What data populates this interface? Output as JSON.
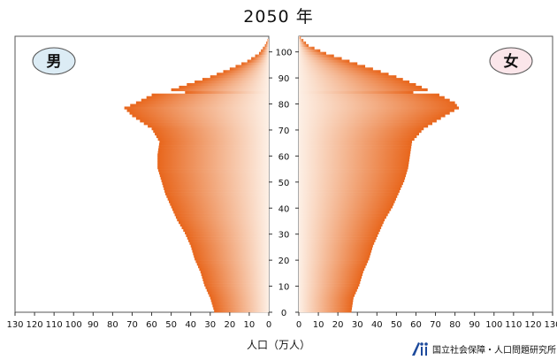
{
  "title": "2050 年",
  "xlabel": "人口（万人）",
  "legend": {
    "male": "男",
    "female": "女"
  },
  "organization": "国立社会保障・人口問題研究所",
  "colors": {
    "bar_dark": "#e8661c",
    "bar_light": "#fdf0e6",
    "male_badge": "#dcecf5",
    "female_badge": "#fbe6ea"
  },
  "chart_data": {
    "type": "bar",
    "orientation": "horizontal-population-pyramid",
    "ages_start": 0,
    "ages_end": 105,
    "ylim": [
      0,
      105
    ],
    "y_ticks": [
      0,
      10,
      20,
      30,
      40,
      50,
      60,
      70,
      80,
      90,
      100
    ],
    "x_ticks": [
      130,
      120,
      110,
      100,
      90,
      80,
      70,
      60,
      50,
      40,
      30,
      20,
      10,
      0
    ],
    "x_ticks_female": [
      0,
      10,
      20,
      30,
      40,
      50,
      60,
      70,
      80,
      90,
      100,
      110,
      120,
      130
    ],
    "xlim": [
      0,
      130
    ],
    "series": [
      {
        "name": "男",
        "key": "male",
        "anchors": [
          [
            0,
            28
          ],
          [
            5,
            30
          ],
          [
            10,
            33
          ],
          [
            15,
            35
          ],
          [
            20,
            38
          ],
          [
            25,
            40
          ],
          [
            30,
            43
          ],
          [
            35,
            47
          ],
          [
            40,
            50
          ],
          [
            45,
            53
          ],
          [
            50,
            55
          ],
          [
            55,
            57
          ],
          [
            60,
            57
          ],
          [
            65,
            56
          ],
          [
            70,
            60
          ],
          [
            75,
            70
          ],
          [
            78,
            74
          ],
          [
            80,
            68
          ],
          [
            83,
            60
          ],
          [
            85,
            50
          ],
          [
            87,
            42
          ],
          [
            90,
            30
          ],
          [
            93,
            20
          ],
          [
            96,
            11
          ],
          [
            99,
            5
          ],
          [
            102,
            2
          ],
          [
            105,
            0
          ]
        ]
      },
      {
        "name": "女",
        "key": "female",
        "anchors": [
          [
            0,
            27
          ],
          [
            5,
            28
          ],
          [
            10,
            31
          ],
          [
            15,
            33
          ],
          [
            20,
            36
          ],
          [
            25,
            38
          ],
          [
            30,
            41
          ],
          [
            35,
            44
          ],
          [
            40,
            48
          ],
          [
            45,
            51
          ],
          [
            50,
            54
          ],
          [
            55,
            56
          ],
          [
            60,
            57
          ],
          [
            65,
            58
          ],
          [
            70,
            64
          ],
          [
            75,
            75
          ],
          [
            78,
            82
          ],
          [
            80,
            80
          ],
          [
            83,
            72
          ],
          [
            85,
            66
          ],
          [
            87,
            60
          ],
          [
            90,
            50
          ],
          [
            93,
            38
          ],
          [
            96,
            26
          ],
          [
            99,
            14
          ],
          [
            102,
            5
          ],
          [
            105,
            1
          ]
        ]
      }
    ],
    "dips": {
      "male": [
        [
          84,
          0.78
        ]
      ],
      "female": [
        [
          84,
          0.85
        ]
      ]
    }
  }
}
